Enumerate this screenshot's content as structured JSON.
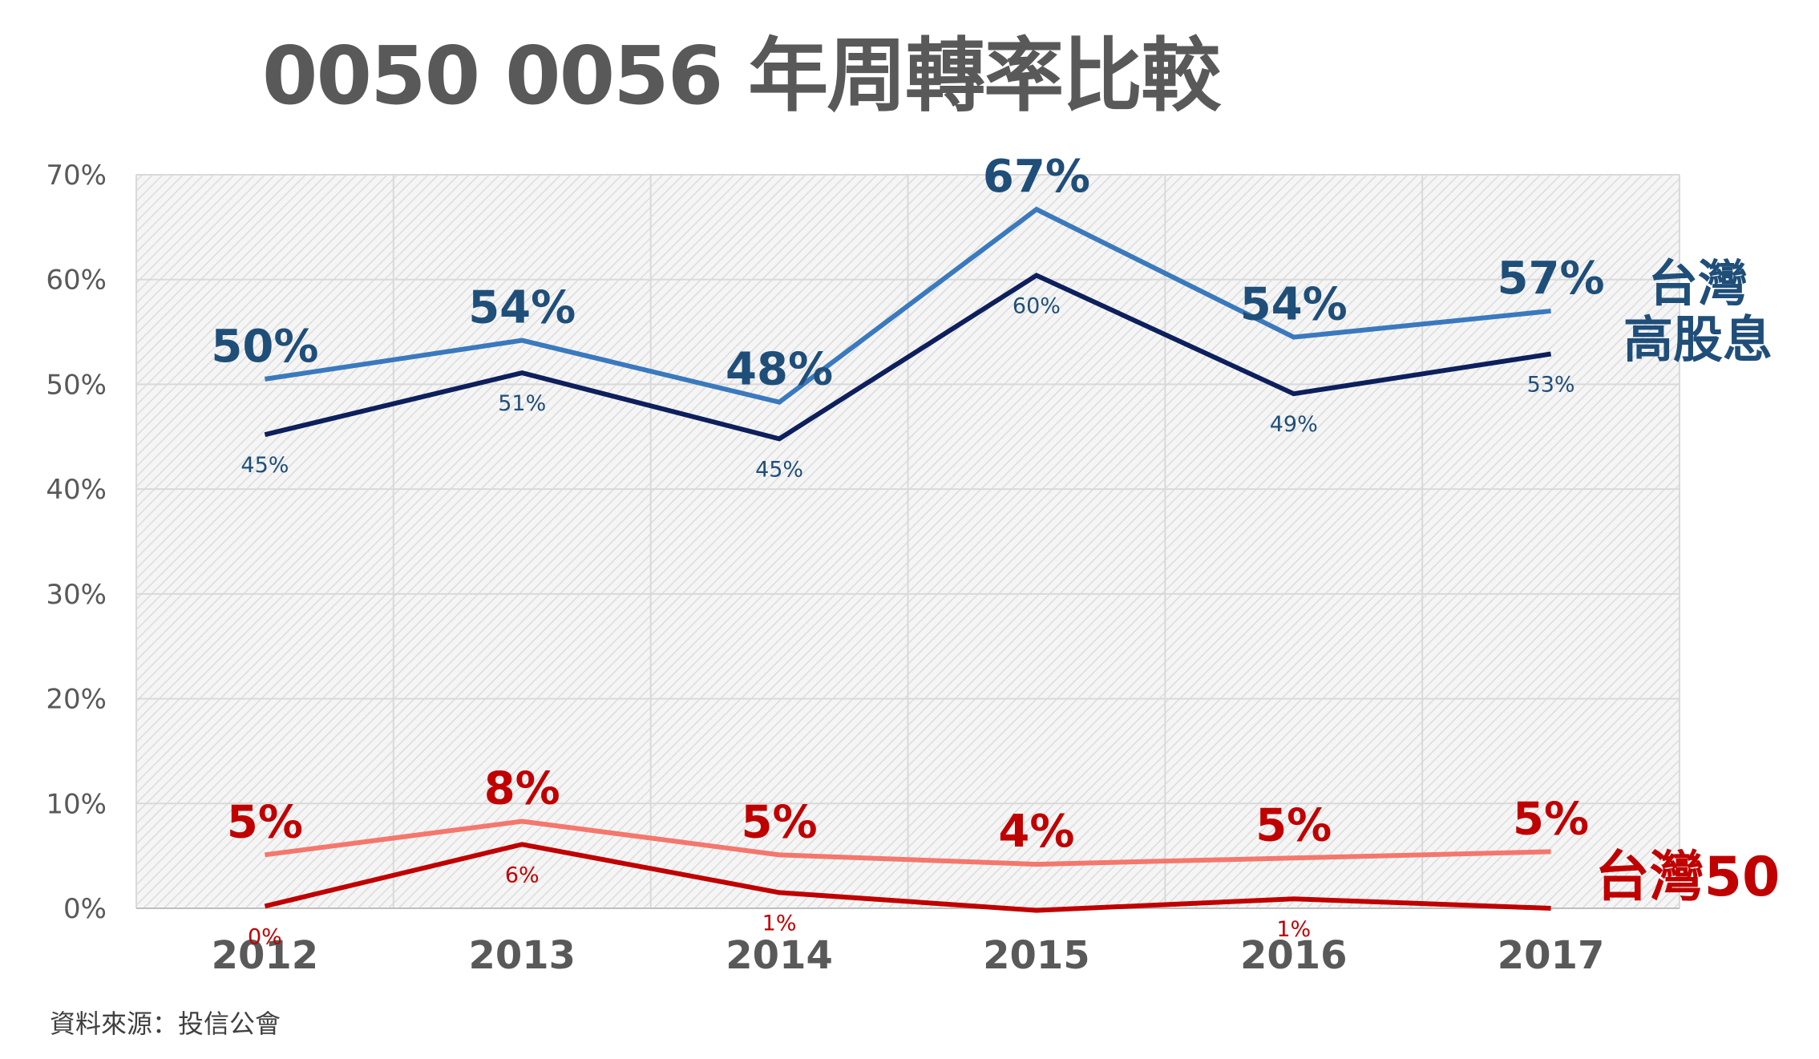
{
  "chart_data": {
    "type": "line",
    "title": "0050 0056 年周轉率比較",
    "source": "資料來源：投信公會",
    "categories": [
      "2012",
      "2013",
      "2014",
      "2015",
      "2016",
      "2017"
    ],
    "ylim": [
      0,
      70
    ],
    "yticks": [
      "0%",
      "10%",
      "20%",
      "30%",
      "40%",
      "50%",
      "60%",
      "70%"
    ],
    "grid": true,
    "series": [
      {
        "group": "台灣高股息",
        "color": "#3A79BD",
        "values": [
          50.5,
          54.2,
          48.3,
          66.7,
          54.5,
          57.0
        ],
        "labels": [
          "50%",
          "54%",
          "48%",
          "67%",
          "54%",
          "57%"
        ],
        "label_style": "large"
      },
      {
        "group": "台灣高股息",
        "color": "#0D1F5C",
        "values": [
          45.2,
          51.1,
          44.8,
          60.4,
          49.1,
          52.9
        ],
        "labels": [
          "45%",
          "51%",
          "45%",
          "60%",
          "49%",
          "53%"
        ],
        "label_style": "small"
      },
      {
        "group": "台灣50",
        "color": "#F4776D",
        "values": [
          5.1,
          8.3,
          5.1,
          4.2,
          4.8,
          5.4
        ],
        "labels": [
          "5%",
          "8%",
          "5%",
          "4%",
          "5%",
          "5%"
        ],
        "label_style": "large"
      },
      {
        "group": "台灣50",
        "color": "#C00000",
        "values": [
          0.2,
          6.1,
          1.5,
          -0.2,
          0.9,
          0.0
        ],
        "labels": [
          "0%",
          "6%",
          "1%",
          "",
          "1%",
          ""
        ],
        "label_style": "small"
      }
    ],
    "group_labels": [
      {
        "lines": [
          "台灣",
          "高股息"
        ],
        "color": "#1F4E79"
      },
      {
        "lines": [
          "台灣50"
        ],
        "color": "#C00000"
      }
    ],
    "label_colors": {
      "blue": "#1F4E79",
      "red": "#C00000"
    }
  }
}
